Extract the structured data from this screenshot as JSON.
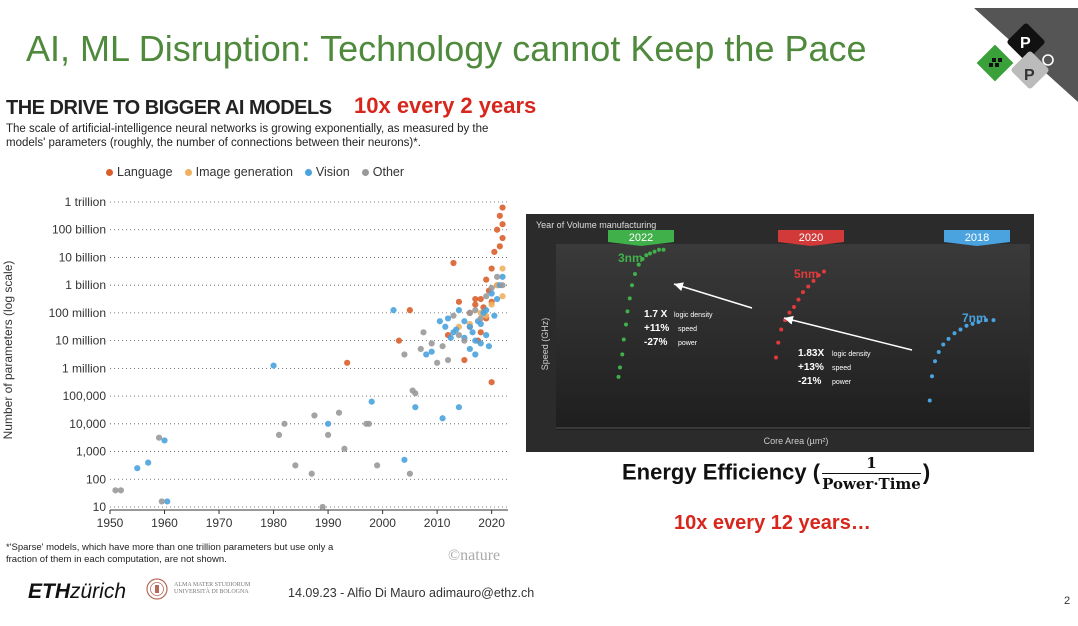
{
  "slide": {
    "title": "AI, ML Disruption: Technology cannot Keep the Pace",
    "callout_top": "10x every 2 years",
    "callout_bottom": "10x every 12 years…",
    "efficiency_label": "Energy Efficiency (",
    "efficiency_close": ")",
    "efficiency_numerator": "1",
    "efficiency_denominator": "Power·Time",
    "footer": "14.09.23 - Alfio Di Mauro adimauro@ethz.ch",
    "page_number": "2",
    "eth_logo_bold": "ETH",
    "eth_logo_rest": "zürich",
    "unibo_line1": "ALMA MATER STUDIORUM",
    "unibo_line2": "UNIVERSITÀ DI BOLOGNA",
    "logo_letters": [
      "P",
      "P"
    ]
  },
  "figure": {
    "title": "THE DRIVE TO BIGGER AI MODELS",
    "subtitle": "The scale of artificial-intelligence neural networks is growing exponentially, as measured by the models' parameters (roughly, the number of connections between their neurons)*.",
    "footnote": "*'Sparse' models, which have more than one trillion parameters but use only a fraction of them in each computation, are not shown.",
    "credit": "©nature",
    "legend": [
      {
        "label": "Language",
        "color": "#d95f2b"
      },
      {
        "label": "Image generation",
        "color": "#f0b060"
      },
      {
        "label": "Vision",
        "color": "#4aa3df"
      },
      {
        "label": "Other",
        "color": "#999999"
      }
    ]
  },
  "chart_data": [
    {
      "type": "scatter",
      "title": "THE DRIVE TO BIGGER AI MODELS",
      "xlabel": "",
      "ylabel": "Number of parameters (log scale)",
      "xlim": [
        1950,
        2023
      ],
      "ylim_log10": [
        1,
        12
      ],
      "x_ticks": [
        "1950",
        "1960",
        "1970",
        "1980",
        "1990",
        "2000",
        "2010",
        "2020"
      ],
      "y_ticks": [
        "10",
        "100",
        "1,000",
        "10,000",
        "100,000",
        "1 million",
        "10 million",
        "100 million",
        "1 billion",
        "10 billion",
        "100 billion",
        "1 trillion"
      ],
      "series": [
        {
          "name": "Language",
          "color": "#d95f2b",
          "points": [
            [
              1993.5,
              6.2
            ],
            [
              2005,
              8.1
            ],
            [
              2003,
              7.0
            ],
            [
              2013,
              9.8
            ],
            [
              2015,
              6.3
            ],
            [
              2016,
              7.5
            ],
            [
              2017,
              8.3
            ],
            [
              2017.5,
              7.0
            ],
            [
              2018,
              8.5
            ],
            [
              2018.5,
              8.2
            ],
            [
              2019,
              9.2
            ],
            [
              2019,
              7.8
            ],
            [
              2019.5,
              8.8
            ],
            [
              2020,
              9.6
            ],
            [
              2020,
              8.4
            ],
            [
              2020.5,
              10.2
            ],
            [
              2021,
              9.0
            ],
            [
              2021,
              11.0
            ],
            [
              2021.5,
              10.4
            ],
            [
              2021.5,
              11.5
            ],
            [
              2022,
              10.7
            ],
            [
              2022,
              11.8
            ],
            [
              2022,
              11.2
            ],
            [
              2020,
              5.5
            ],
            [
              2016,
              8.0
            ],
            [
              2014,
              8.4
            ],
            [
              2018,
              7.3
            ],
            [
              2017,
              8.5
            ],
            [
              2012,
              7.2
            ]
          ]
        },
        {
          "name": "Image generation",
          "color": "#f0b060",
          "points": [
            [
              2014,
              7.5
            ],
            [
              2016,
              7.6
            ],
            [
              2018,
              8.0
            ],
            [
              2019,
              7.9
            ],
            [
              2020,
              8.3
            ],
            [
              2021,
              9.0
            ],
            [
              2022,
              9.6
            ],
            [
              2022,
              8.6
            ]
          ]
        },
        {
          "name": "Vision",
          "color": "#4aa3df",
          "points": [
            [
              1955,
              2.4
            ],
            [
              1957,
              2.6
            ],
            [
              1960,
              3.4
            ],
            [
              1960.5,
              1.2
            ],
            [
              1980,
              6.1
            ],
            [
              1990,
              4.0
            ],
            [
              1998,
              4.8
            ],
            [
              2002,
              8.1
            ],
            [
              2004,
              2.7
            ],
            [
              2006,
              4.6
            ],
            [
              2009,
              6.6
            ],
            [
              2011,
              4.2
            ],
            [
              2012,
              7.8
            ],
            [
              2013,
              7.3
            ],
            [
              2014,
              4.6
            ],
            [
              2014,
              8.1
            ],
            [
              2015,
              7.7
            ],
            [
              2015,
              7.1
            ],
            [
              2016,
              7.5
            ],
            [
              2016,
              6.7
            ],
            [
              2016.5,
              7.3
            ],
            [
              2017,
              6.5
            ],
            [
              2017,
              7.0
            ],
            [
              2017.5,
              7.7
            ],
            [
              2018,
              6.9
            ],
            [
              2018,
              7.6
            ],
            [
              2018.5,
              8.0
            ],
            [
              2019,
              7.2
            ],
            [
              2019,
              8.1
            ],
            [
              2019.5,
              6.8
            ],
            [
              2020,
              8.7
            ],
            [
              2020.5,
              7.9
            ],
            [
              2021,
              8.5
            ],
            [
              2021.5,
              9.0
            ],
            [
              2022,
              9.3
            ],
            [
              2010.5,
              7.7
            ],
            [
              2011.5,
              7.5
            ],
            [
              2012.5,
              7.1
            ],
            [
              2013.5,
              7.4
            ],
            [
              2008,
              6.5
            ]
          ]
        },
        {
          "name": "Other",
          "color": "#999999",
          "points": [
            [
              1951,
              1.6
            ],
            [
              1952,
              1.6
            ],
            [
              1959,
              3.5
            ],
            [
              1959.5,
              1.2
            ],
            [
              1981,
              3.6
            ],
            [
              1982,
              4.0
            ],
            [
              1984,
              2.5
            ],
            [
              1987,
              2.2
            ],
            [
              1987.5,
              4.3
            ],
            [
              1990,
              3.6
            ],
            [
              1992,
              4.4
            ],
            [
              1993,
              3.1
            ],
            [
              1997,
              4.0
            ],
            [
              1997.5,
              4.0
            ],
            [
              1999,
              2.5
            ],
            [
              2004,
              6.5
            ],
            [
              2005,
              2.2
            ],
            [
              2005.5,
              5.2
            ],
            [
              2006,
              5.1
            ],
            [
              2007,
              6.7
            ],
            [
              2009,
              6.9
            ],
            [
              2010,
              6.2
            ],
            [
              2011,
              6.8
            ],
            [
              2012,
              6.3
            ],
            [
              2013,
              7.9
            ],
            [
              2014,
              7.2
            ],
            [
              2015,
              7.0
            ],
            [
              2016,
              8.0
            ],
            [
              2017,
              8.1
            ],
            [
              2018,
              7.8
            ],
            [
              2019,
              8.6
            ],
            [
              2020,
              8.9
            ],
            [
              2021,
              9.3
            ],
            [
              2022,
              9.0
            ],
            [
              1989,
              1.0
            ],
            [
              2007.5,
              7.3
            ]
          ]
        }
      ]
    },
    {
      "type": "scatter",
      "title": "",
      "xlabel": "Core Area (µm²)",
      "ylabel": "Speed (GHz)",
      "header_label": "Year of Volume manufacturing",
      "series": [
        {
          "name": "3nm",
          "year": "2022",
          "color": "#3fb04a",
          "points": [
            [
              0.3,
              0.22
            ],
            [
              0.32,
              0.27
            ],
            [
              0.35,
              0.34
            ],
            [
              0.37,
              0.42
            ],
            [
              0.4,
              0.5
            ],
            [
              0.42,
              0.57
            ],
            [
              0.45,
              0.64
            ],
            [
              0.48,
              0.71
            ],
            [
              0.52,
              0.77
            ],
            [
              0.57,
              0.82
            ],
            [
              0.62,
              0.85
            ],
            [
              0.67,
              0.87
            ],
            [
              0.72,
              0.88
            ],
            [
              0.78,
              0.89
            ],
            [
              0.84,
              0.9
            ],
            [
              0.9,
              0.9
            ]
          ]
        },
        {
          "name": "5nm",
          "year": "2020",
          "color": "#e03a3a",
          "points": [
            [
              0.4,
              0.35
            ],
            [
              0.43,
              0.43
            ],
            [
              0.47,
              0.5
            ],
            [
              0.52,
              0.55
            ],
            [
              0.58,
              0.59
            ],
            [
              0.64,
              0.62
            ],
            [
              0.7,
              0.66
            ],
            [
              0.76,
              0.7
            ],
            [
              0.83,
              0.73
            ],
            [
              0.9,
              0.76
            ],
            [
              0.97,
              0.79
            ],
            [
              1.04,
              0.81
            ]
          ]
        },
        {
          "name": "7nm",
          "year": "2018",
          "color": "#4aa3df",
          "points": [
            [
              0.45,
              0.12
            ],
            [
              0.48,
              0.25
            ],
            [
              0.52,
              0.33
            ],
            [
              0.57,
              0.38
            ],
            [
              0.63,
              0.42
            ],
            [
              0.7,
              0.45
            ],
            [
              0.78,
              0.48
            ],
            [
              0.86,
              0.5
            ],
            [
              0.94,
              0.52
            ],
            [
              1.02,
              0.53
            ],
            [
              1.1,
              0.54
            ],
            [
              1.2,
              0.55
            ],
            [
              1.3,
              0.55
            ]
          ]
        }
      ],
      "annotations": [
        {
          "lines": [
            "1.7 X",
            "logic density",
            "+11%",
            "speed",
            "-27%",
            "power"
          ]
        },
        {
          "lines": [
            "1.83X",
            "logic density",
            "+13%",
            "speed",
            "-21%",
            "power"
          ]
        }
      ]
    }
  ]
}
